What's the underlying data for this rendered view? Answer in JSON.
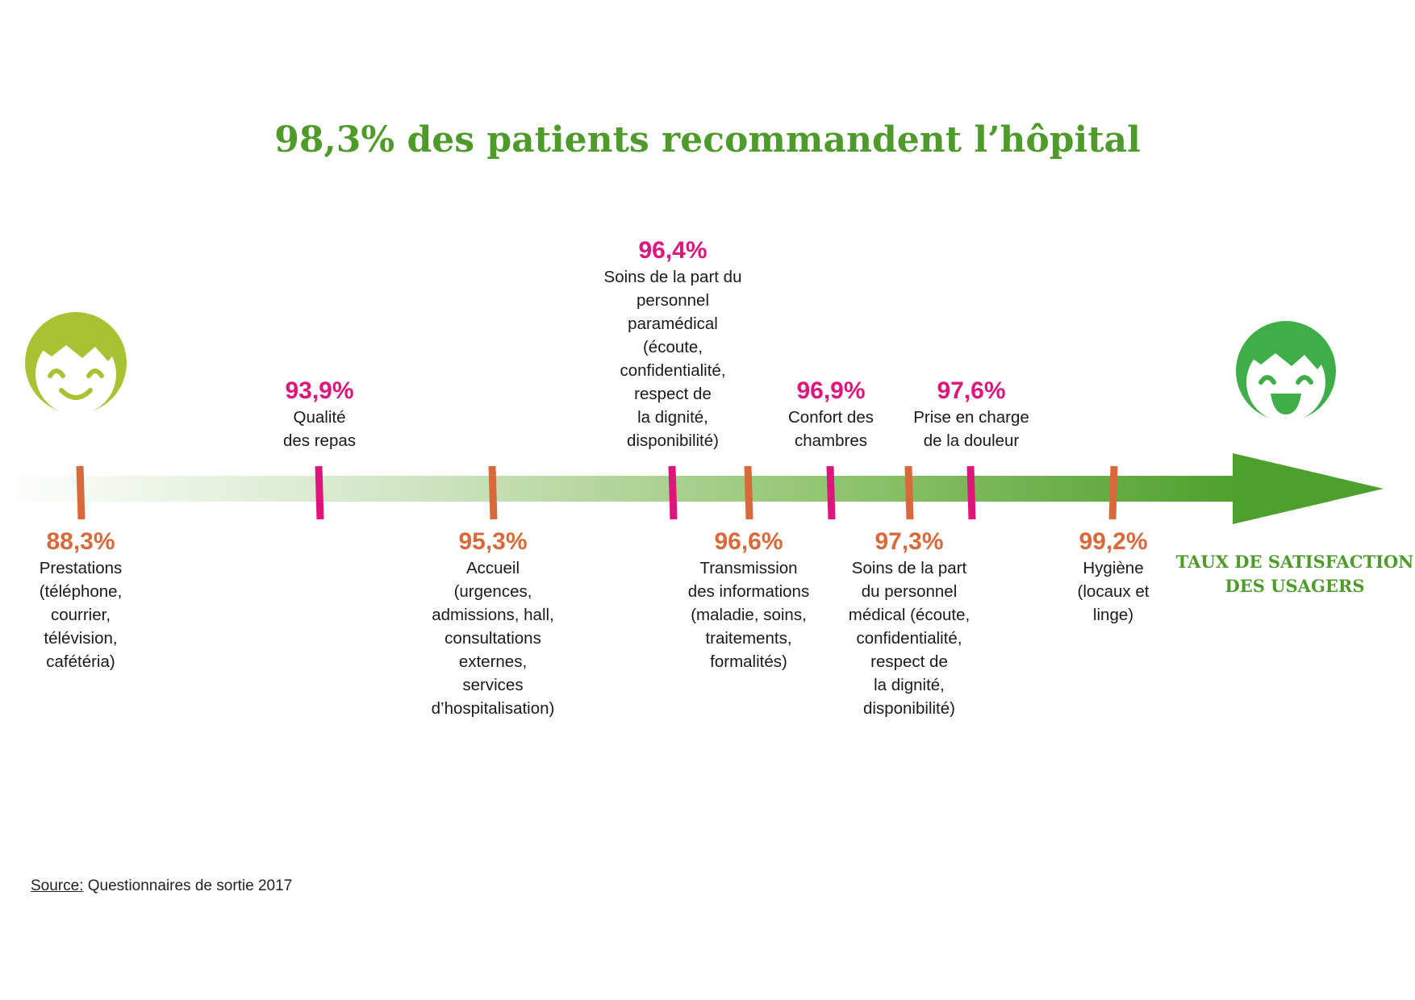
{
  "chart_data": {
    "type": "timeline",
    "title": "98,3% des patients recommandent l’hôpital",
    "axis_label": "TAUX DE SATISFACTION\nDES USAGERS",
    "items": [
      {
        "value": 88.3,
        "pct_label": "88,3%",
        "desc": "Prestations\n(téléphone,\ncourrier,\ntélévision,\ncafétéria)",
        "side": "below",
        "color": "#d9693a"
      },
      {
        "value": 93.9,
        "pct_label": "93,9%",
        "desc": "Qualité\ndes repas",
        "side": "above",
        "color": "#e0157c"
      },
      {
        "value": 95.3,
        "pct_label": "95,3%",
        "desc": "Accueil\n(urgences,\nadmissions, hall,\nconsultations\nexternes,\nservices\nd’hospitalisation)",
        "side": "below",
        "color": "#d9693a"
      },
      {
        "value": 96.4,
        "pct_label": "96,4%",
        "desc": "Soins de la part du\npersonnel\nparamédical\n(écoute,\nconfidentialité,\nrespect de\nla dignité,\ndisponibilité)",
        "side": "above",
        "color": "#e0157c"
      },
      {
        "value": 96.6,
        "pct_label": "96,6%",
        "desc": "Transmission\ndes informations\n(maladie, soins,\ntraitements,\nformalités)",
        "side": "below",
        "color": "#d9693a"
      },
      {
        "value": 96.9,
        "pct_label": "96,9%",
        "desc": "Confort des\nchambres",
        "side": "above",
        "color": "#e0157c"
      },
      {
        "value": 97.3,
        "pct_label": "97,3%",
        "desc": "Soins de la part\ndu personnel\nmédical (écoute,\nconfidentialité,\nrespect de\nla dignité,\ndisponibilité)",
        "side": "below",
        "color": "#d9693a"
      },
      {
        "value": 97.6,
        "pct_label": "97,6%",
        "desc": "Prise en charge\nde la douleur",
        "side": "above",
        "color": "#e0157c"
      },
      {
        "value": 99.2,
        "pct_label": "99,2%",
        "desc": "Hygiène\n(locaux et\nlinge)",
        "side": "below",
        "color": "#d9693a"
      }
    ]
  },
  "source": {
    "label": "Source:",
    "text": " Questionnaires de sortie 2017"
  },
  "colors": {
    "title_green": "#4e9a2b",
    "arrow_green": "#4ea02c",
    "face_left": "#a8c232",
    "face_right": "#3fae49"
  },
  "icons": {
    "left": "smiling-face-icon",
    "right": "laughing-face-icon"
  }
}
